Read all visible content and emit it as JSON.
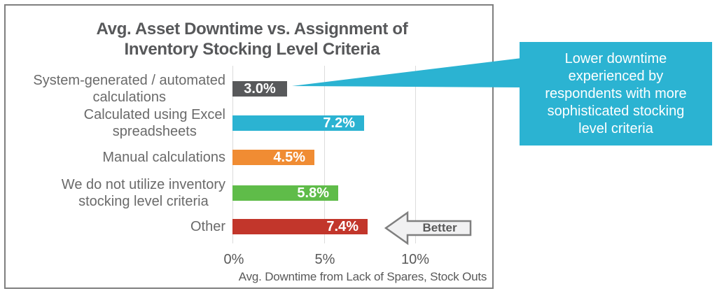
{
  "title": {
    "line1": "Avg. Asset Downtime vs. Assignment of",
    "line2": "Inventory Stocking Level Criteria"
  },
  "chart_data": {
    "type": "bar",
    "orientation": "horizontal",
    "title": "Avg. Asset Downtime vs. Assignment of Inventory Stocking Level Criteria",
    "categories": [
      "System-generated / automated calculations",
      "Calculated using Excel spreadsheets",
      "Manual calculations",
      "We do not utilize inventory stocking level criteria",
      "Other"
    ],
    "category_lines": [
      [
        "System-generated / automated",
        "calculations"
      ],
      [
        "Calculated using Excel",
        "spreadsheets"
      ],
      [
        "Manual calculations"
      ],
      [
        "We do not utilize inventory",
        "stocking level criteria"
      ],
      [
        "Other"
      ]
    ],
    "values": [
      3.0,
      7.2,
      4.5,
      5.8,
      7.4
    ],
    "value_labels": [
      "3.0%",
      "7.2%",
      "4.5%",
      "5.8%",
      "7.4%"
    ],
    "bar_colors": [
      "#58595b",
      "#2bb3d2",
      "#f08c33",
      "#5fbc49",
      "#c2362b"
    ],
    "xlabel": "Avg. Downtime from Lack of Spares, Stock Outs",
    "xticks": [
      "0%",
      "5%",
      "10%"
    ],
    "xtick_values": [
      0,
      5,
      10
    ],
    "xlim": [
      0,
      12.5
    ],
    "grid": true,
    "legend": false
  },
  "annotations": {
    "better_arrow": {
      "label": "Better",
      "direction": "left"
    },
    "callout": {
      "text": "Lower downtime experienced by respondents with more sophisticated stocking level criteria",
      "lines": [
        "Lower downtime",
        "experienced by",
        "respondents with more",
        "sophisticated stocking",
        "level criteria"
      ],
      "background": "#2bb3d2",
      "text_color": "#ffffff"
    }
  },
  "colors": {
    "accent_cyan": "#2bb3d2",
    "bar_dark_gray": "#58595b",
    "bar_orange": "#f08c33",
    "bar_green": "#5fbc49",
    "bar_red": "#c2362b",
    "title_text": "#57585a",
    "label_text": "#6a6a6a",
    "axis_text": "#595959",
    "gridline": "#dcdcdc",
    "frame_border": "#7f7f7f",
    "arrow_fill": "#f1f1f2"
  }
}
